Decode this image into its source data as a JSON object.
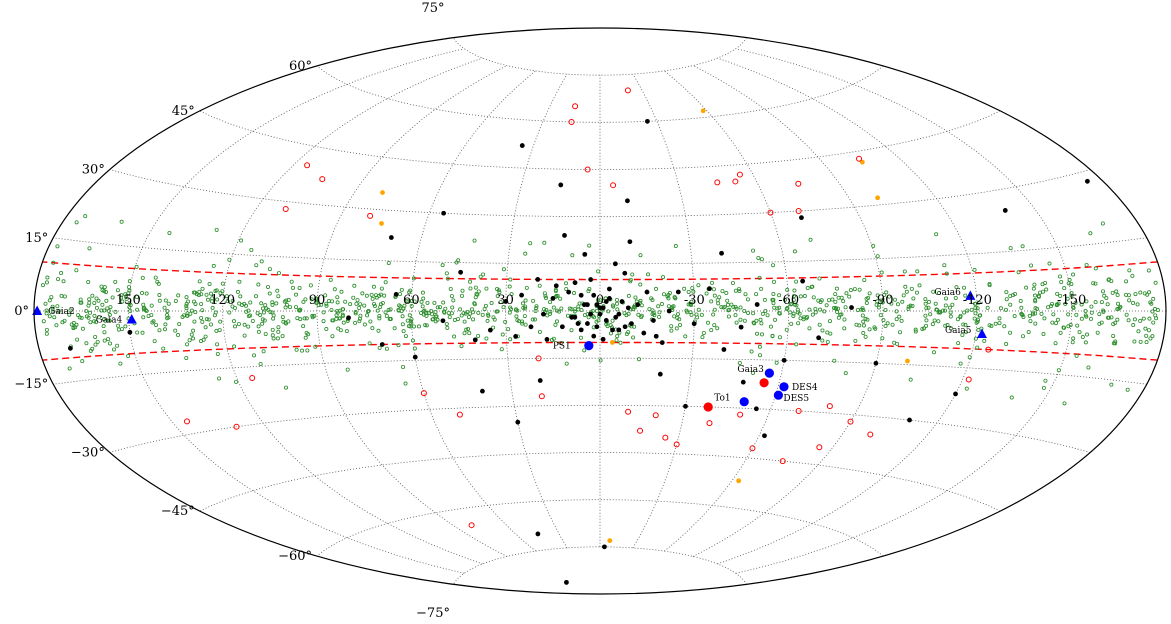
{
  "chart_data": {
    "type": "scatter",
    "projection": "aitoff",
    "xlabel": "",
    "ylabel": "",
    "xlim": [
      180,
      -180
    ],
    "ylim": [
      -90,
      90
    ],
    "grid": true,
    "x_ticks": [
      150,
      120,
      90,
      60,
      30,
      0,
      -30,
      -60,
      -90,
      -120,
      -150
    ],
    "x_tick_labels": [
      "150",
      "120",
      "90",
      "60",
      "30",
      "0",
      "-30",
      "-60",
      "-90",
      "-120",
      "-150"
    ],
    "y_ticks": [
      75,
      60,
      45,
      30,
      15,
      0,
      -15,
      -30,
      -45,
      -60,
      -75
    ],
    "y_tick_labels": [
      "75°",
      "60°",
      "45°",
      "30°",
      "15°",
      "0°",
      "−15°",
      "−30°",
      "−45°",
      "−60°",
      "−75°"
    ],
    "band_lat": 10,
    "colors": {
      "frame": "#000000",
      "grid": "#555555",
      "band": "#ff0000",
      "green": "#2c8e2c",
      "black": "#000000",
      "orange": "#ffa500",
      "red_open": "#ff0000",
      "blue": "#0000ff",
      "red": "#ff0000"
    },
    "series": [
      {
        "key": "green",
        "marker": "small-open-circle",
        "points": []
      },
      {
        "key": "black",
        "marker": "dot",
        "points": [
          [
            0,
            1
          ],
          [
            1,
            2
          ],
          [
            -1,
            1
          ],
          [
            3,
            -1
          ],
          [
            -2,
            3
          ],
          [
            2,
            5
          ],
          [
            -3,
            4
          ],
          [
            5,
            2
          ],
          [
            -5,
            -2
          ],
          [
            4,
            -4
          ],
          [
            -4,
            -6
          ],
          [
            6,
            5
          ],
          [
            -6,
            -1
          ],
          [
            1,
            -5
          ],
          [
            2,
            -8
          ],
          [
            -1,
            -9
          ],
          [
            7,
            -4
          ],
          [
            -7,
            3
          ],
          [
            9,
            -2
          ],
          [
            -9,
            1
          ],
          [
            10,
            6
          ],
          [
            -10,
            -4
          ],
          [
            12,
            -5
          ],
          [
            -12,
            2
          ],
          [
            14,
            8
          ],
          [
            -14,
            -7
          ],
          [
            8,
            9
          ],
          [
            -8,
            12
          ],
          [
            3,
            10
          ],
          [
            15,
            4
          ],
          [
            -15,
            6
          ],
          [
            17,
            -9
          ],
          [
            -17,
            -3
          ],
          [
            20,
            10
          ],
          [
            -20,
            -10
          ],
          [
            22,
            -5
          ],
          [
            -22,
            0
          ],
          [
            25,
            5
          ],
          [
            -25,
            6
          ],
          [
            27,
            -8
          ],
          [
            30,
            3
          ],
          [
            -30,
            -4
          ],
          [
            35,
            -6
          ],
          [
            -35,
            7
          ],
          [
            40,
            -9
          ],
          [
            -40,
            -12
          ],
          [
            45,
            12
          ],
          [
            -45,
            -5
          ],
          [
            50,
            -3
          ],
          [
            -50,
            2
          ],
          [
            60,
            -14
          ],
          [
            -60,
            -15
          ],
          [
            65,
            5
          ],
          [
            -65,
            9
          ],
          [
            70,
            -10
          ],
          [
            -70,
            -8
          ],
          [
            80,
            -2
          ],
          [
            -80,
            1
          ],
          [
            -5,
            15
          ],
          [
            5,
            18
          ],
          [
            -10,
            22
          ],
          [
            12,
            24
          ],
          [
            -20,
            -20
          ],
          [
            20,
            -22
          ],
          [
            30,
            -35
          ],
          [
            -30,
            -30
          ],
          [
            40,
            -25
          ],
          [
            -40,
            18
          ],
          [
            55,
            30
          ],
          [
            -55,
            -30
          ],
          [
            70,
            22
          ],
          [
            -70,
            28
          ],
          [
            35,
            52
          ],
          [
            -25,
            60
          ],
          [
            -10,
            35
          ],
          [
            15,
            40
          ],
          [
            -90,
            -15
          ],
          [
            -110,
            -30
          ],
          [
            -120,
            -22
          ],
          [
            -140,
            25
          ],
          [
            150,
            -5
          ],
          [
            170,
            -8
          ],
          [
            -175,
            28
          ],
          [
            -4,
            -75
          ],
          [
            45,
            -70
          ],
          [
            90,
            -85
          ],
          [
            -48,
            -22
          ],
          [
            -62,
            -38
          ],
          [
            8,
            -2
          ],
          [
            -2,
            -3
          ],
          [
            0,
            -1
          ],
          [
            6,
            -6
          ],
          [
            -6,
            -6
          ],
          [
            -3,
            7
          ],
          [
            4,
            2
          ],
          [
            -8,
            -5
          ],
          [
            18,
            -1
          ],
          [
            -18,
            -8
          ]
        ]
      },
      {
        "key": "orange",
        "marker": "dot",
        "points": [
          [
            -4,
            -10
          ],
          [
            80,
            35
          ],
          [
            75,
            26
          ],
          [
            -58,
            62
          ],
          [
            -105,
            42
          ],
          [
            -100,
            32
          ],
          [
            -100,
            -14
          ],
          [
            -63,
            -52
          ],
          [
            -8,
            -73
          ]
        ]
      },
      {
        "key": "red_open",
        "marker": "open-circle",
        "points": [
          [
            20,
            -15
          ],
          [
            -60,
            -42
          ],
          [
            -75,
            -45
          ],
          [
            -40,
            -35
          ],
          [
            -30,
            -42
          ],
          [
            -50,
            -32
          ],
          [
            -90,
            -32
          ],
          [
            -122,
            -18
          ],
          [
            145,
            -27
          ],
          [
            130,
            -30
          ],
          [
            115,
            -18
          ],
          [
            60,
            -25
          ],
          [
            20,
            -27
          ],
          [
            -10,
            -32
          ],
          [
            -25,
            -40
          ],
          [
            115,
            40
          ],
          [
            105,
            37
          ],
          [
            110,
            28
          ],
          [
            -55,
            42
          ],
          [
            -45,
            40
          ],
          [
            -52,
            40
          ],
          [
            -75,
            38
          ],
          [
            -105,
            43
          ],
          [
            -60,
            30
          ],
          [
            -80,
            -28
          ],
          [
            -100,
            -35
          ],
          [
            -125,
            -10
          ],
          [
            -70,
            -30
          ],
          [
            -85,
            -40
          ],
          [
            -20,
            -33
          ],
          [
            -15,
            -38
          ],
          [
            -5,
            40
          ],
          [
            5,
            45
          ],
          [
            15,
            60
          ],
          [
            15,
            65
          ],
          [
            -20,
            70
          ],
          [
            80,
            -65
          ],
          [
            80,
            28
          ],
          [
            -70,
            30
          ],
          [
            50,
            -32
          ]
        ]
      },
      {
        "key": "blue",
        "marker": "circle",
        "points": [
          [
            3.6,
            -11
          ],
          [
            -56,
            -19
          ],
          [
            -62,
            -23
          ],
          [
            -61,
            -25.6
          ],
          [
            -50,
            -28
          ]
        ]
      },
      {
        "key": "blue",
        "marker": "triangle",
        "points": [
          [
            179,
            0
          ],
          [
            149,
            -2
          ],
          [
            -122,
            -6
          ],
          [
            -118,
            4
          ]
        ]
      },
      {
        "key": "red",
        "marker": "circle",
        "points": [
          [
            -55,
            -22
          ],
          [
            -38,
            -30
          ]
        ]
      }
    ],
    "point_labels": [
      {
        "text": "PS1",
        "lon": 3.6,
        "lat": -11,
        "dx": -36,
        "dy": 3
      },
      {
        "text": "Gaia3",
        "lon": -56,
        "lat": -19,
        "dx": -32,
        "dy": -1
      },
      {
        "text": "DES4",
        "lon": -62,
        "lat": -23,
        "dx": 8,
        "dy": 3
      },
      {
        "text": "DES5",
        "lon": -61,
        "lat": -25.6,
        "dx": 5,
        "dy": 6
      },
      {
        "text": "To1",
        "lon": -50,
        "lat": -28,
        "dx": -30,
        "dy": -1
      },
      {
        "text": "Gaia2",
        "lon": 179,
        "lat": 0,
        "dx": 11,
        "dy": 3
      },
      {
        "text": "Gaia4",
        "lon": 149,
        "lat": -2,
        "dx": -36,
        "dy": 3
      },
      {
        "text": "Gaia5",
        "lon": -122,
        "lat": -6,
        "dx": -37,
        "dy": -1
      },
      {
        "text": "Gaia6",
        "lon": -118,
        "lat": 4,
        "dx": -36,
        "dy": -1
      }
    ]
  }
}
